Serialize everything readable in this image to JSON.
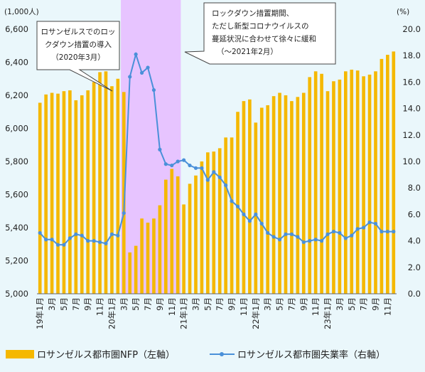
{
  "chart_data": {
    "type": "bar",
    "left_axis": {
      "unit_label": "(1,000人)",
      "ylim": [
        5000,
        6600
      ],
      "ticks": [
        "5,000",
        "5,200",
        "5,400",
        "5,600",
        "5,800",
        "6,000",
        "6,200",
        "6,400",
        "6,600"
      ],
      "tick_values": [
        5000,
        5200,
        5400,
        5600,
        5800,
        6000,
        6200,
        6400,
        6600
      ]
    },
    "right_axis": {
      "unit_label": "(%)",
      "ylim": [
        0,
        20
      ],
      "ticks": [
        "0.0",
        "2.0",
        "4.0",
        "6.0",
        "8.0",
        "10.0",
        "12.0",
        "14.0",
        "16.0",
        "18.0",
        "20.0"
      ],
      "tick_values": [
        0,
        2,
        4,
        6,
        8,
        10,
        12,
        14,
        16,
        18,
        20
      ]
    },
    "x_labels": [
      "19年1月",
      "3月",
      "5月",
      "7月",
      "9月",
      "11月",
      "20年1月",
      "3月",
      "5月",
      "7月",
      "9月",
      "11月",
      "21年1月",
      "3月",
      "5月",
      "7月",
      "9月",
      "11月",
      "22年1月",
      "3月",
      "5月",
      "7月",
      "9月",
      "11月",
      "23年1月",
      "3月",
      "5月",
      "7月",
      "9月",
      "11月"
    ],
    "series": [
      {
        "name": "ロサンゼルス都市圏NFP（左軸）",
        "type": "bar",
        "color": "#f5b800",
        "values": [
          6155,
          6205,
          6215,
          6210,
          6225,
          6230,
          6170,
          6200,
          6230,
          6280,
          6340,
          6345,
          6255,
          6300,
          6220,
          5250,
          5290,
          5455,
          5430,
          5455,
          5535,
          5690,
          5755,
          5710,
          5540,
          5665,
          5715,
          5800,
          5855,
          5860,
          5880,
          5945,
          5945,
          6100,
          6165,
          6175,
          6035,
          6125,
          6140,
          6195,
          6215,
          6200,
          6165,
          6190,
          6215,
          6310,
          6345,
          6330,
          6225,
          6285,
          6295,
          6345,
          6355,
          6350,
          6315,
          6325,
          6345,
          6420,
          6445,
          6465
        ]
      },
      {
        "name": "ロサンゼルス都市圏失業率（右軸）",
        "type": "line",
        "color": "#4a90d9",
        "values": [
          4.6,
          4.1,
          4.1,
          3.7,
          3.7,
          4.2,
          4.5,
          4.4,
          4.0,
          4.0,
          3.9,
          3.8,
          4.5,
          4.4,
          6.1,
          16.4,
          18.1,
          16.7,
          17.1,
          15.4,
          10.9,
          9.8,
          9.7,
          10.0,
          10.1,
          9.7,
          9.5,
          9.5,
          8.6,
          9.2,
          8.8,
          8.2,
          7.0,
          6.6,
          6.0,
          5.5,
          6.0,
          5.3,
          4.6,
          4.3,
          4.1,
          4.5,
          4.5,
          4.3,
          3.9,
          4.0,
          4.1,
          4.0,
          4.5,
          4.7,
          4.6,
          4.2,
          4.4,
          4.9,
          5.0,
          5.4,
          5.3,
          4.7,
          4.7,
          4.7
        ]
      }
    ],
    "shaded_period": {
      "start_index": 14,
      "end_index": 24,
      "color": "#e7c4ff"
    }
  },
  "callouts": {
    "left": [
      "ロサンゼルスでのロッ",
      "クダウン措置の導入",
      "（2020年3月）"
    ],
    "right": [
      "ロックダウン措置期間、",
      "ただし新型コロナウイルスの",
      "蔓延状況に合わせて徐々に緩和",
      "（～2021年2月）"
    ]
  },
  "legend": {
    "nfp": "ロサンゼルス都市圏NFP（左軸）",
    "rate": "ロサンゼルス都市圏失業率（右軸）"
  }
}
